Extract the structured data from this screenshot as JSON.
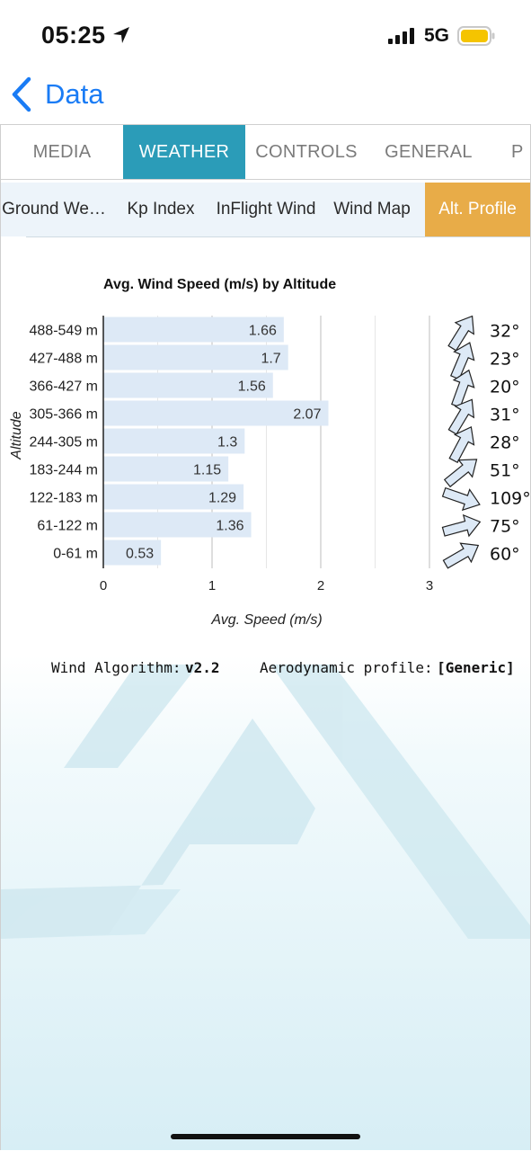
{
  "status_bar": {
    "time": "05:25",
    "network": "5G"
  },
  "nav": {
    "back_label": "Data"
  },
  "tabs": [
    {
      "label": "MEDIA",
      "active": false
    },
    {
      "label": "WEATHER",
      "active": true
    },
    {
      "label": "CONTROLS",
      "active": false
    },
    {
      "label": "GENERAL",
      "active": false
    },
    {
      "label": "P",
      "active": false
    }
  ],
  "subtabs": [
    {
      "label": "Ground We…",
      "active": false
    },
    {
      "label": "Kp Index",
      "active": false
    },
    {
      "label": "InFlight Wind",
      "active": false
    },
    {
      "label": "Wind Map",
      "active": false
    },
    {
      "label": "Alt. Profile",
      "active": true
    }
  ],
  "chart_data": {
    "type": "bar",
    "orientation": "horizontal",
    "title": "Avg. Wind Speed (m/s) by Altitude",
    "xlabel": "Avg. Speed (m/s)",
    "ylabel": "Altitude",
    "xlim": [
      0,
      3
    ],
    "xticks": [
      "0",
      "1",
      "2",
      "3"
    ],
    "grid": true,
    "categories": [
      "488-549 m",
      "427-488 m",
      "366-427 m",
      "305-366 m",
      "244-305 m",
      "183-244 m",
      "122-183 m",
      "61-122 m",
      "0-61 m"
    ],
    "values": [
      1.66,
      1.7,
      1.56,
      2.07,
      1.3,
      1.15,
      1.29,
      1.36,
      0.53
    ],
    "value_labels": [
      "1.66",
      "1.7",
      "1.56",
      "2.07",
      "1.3",
      "1.15",
      "1.29",
      "1.36",
      "0.53"
    ],
    "directions": [
      32,
      23,
      20,
      31,
      28,
      51,
      109,
      75,
      60
    ],
    "direction_labels": [
      "32°",
      "23°",
      "20°",
      "31°",
      "28°",
      "51°",
      "109°",
      "75°",
      "60°"
    ],
    "bar_color": "#dde9f6"
  },
  "info": {
    "algorithm_label": "Wind Algorithm:",
    "algorithm_value": "v2.2",
    "profile_label": "Aerodynamic profile:",
    "profile_value": "[Generic]"
  },
  "colors": {
    "accent_blue": "#1a7cf5",
    "tab_active": "#2b9cb8",
    "subtab_active": "#e8ac48",
    "battery": "#f5c400"
  }
}
